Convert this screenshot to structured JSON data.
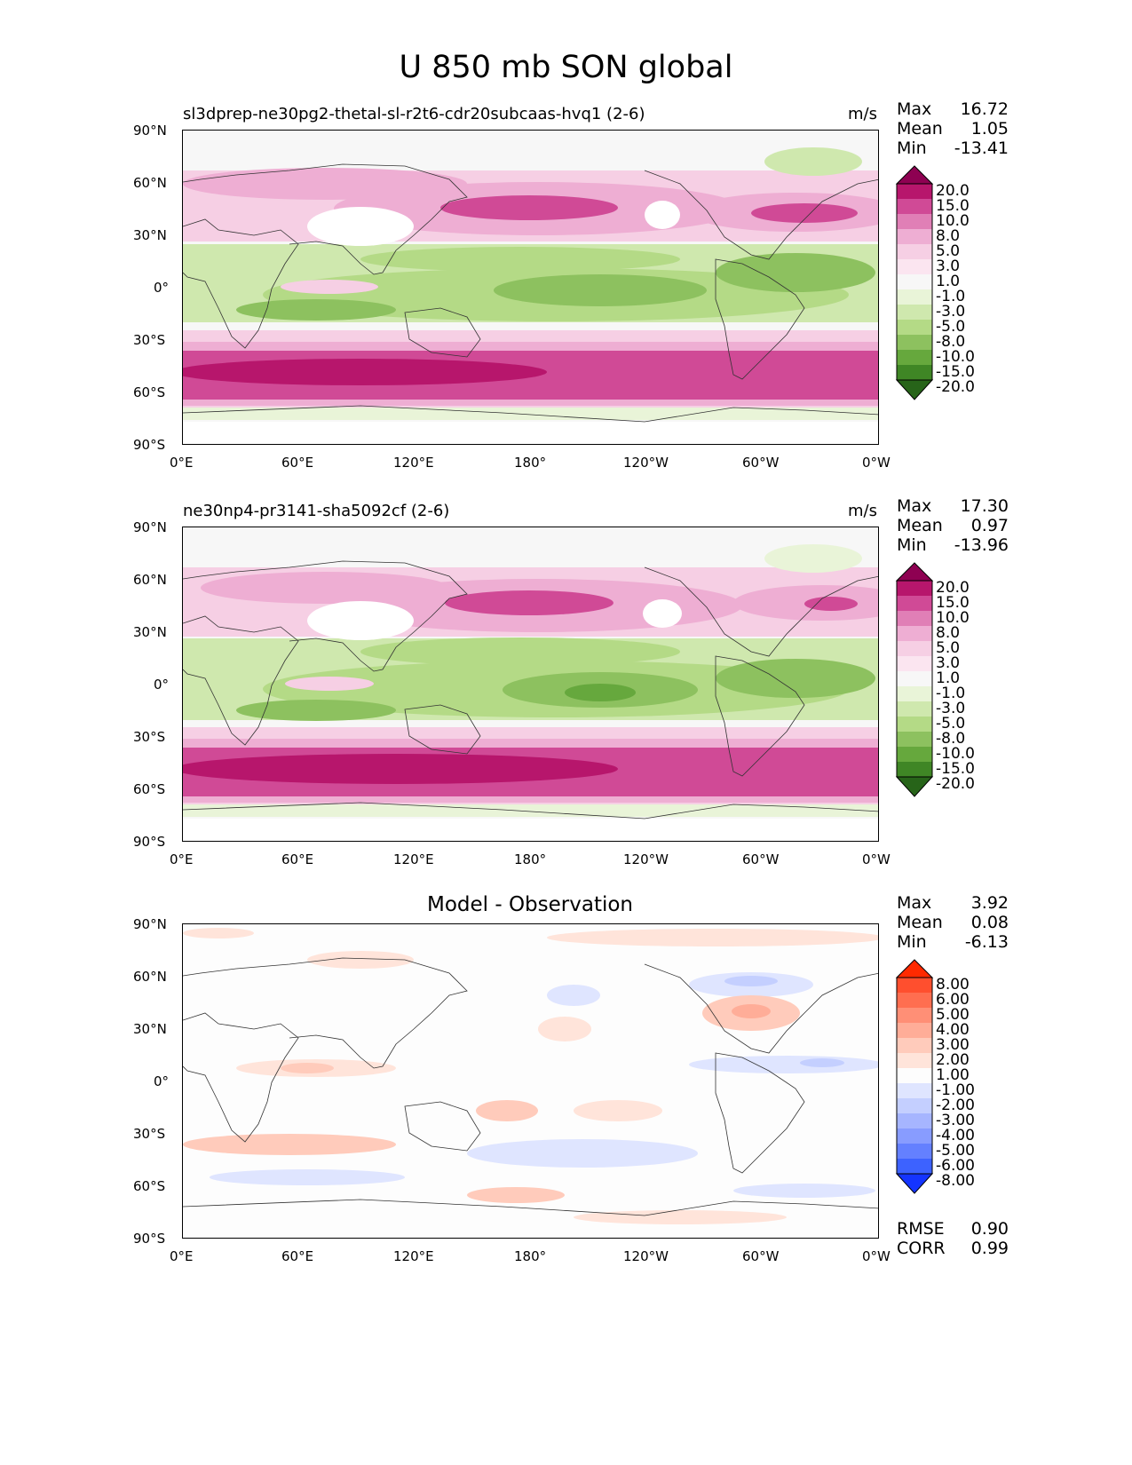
{
  "figure": {
    "title": "U 850 mb SON global"
  },
  "axes": {
    "lat_ticks": [
      "90°N",
      "60°N",
      "30°N",
      "0°",
      "30°S",
      "60°S",
      "90°S"
    ],
    "lon_ticks": [
      "0°E",
      "60°E",
      "120°E",
      "180°",
      "120°W",
      "60°W",
      "0°W"
    ]
  },
  "panels": [
    {
      "title": "sl3dprep-ne30pg2-thetal-sl-r2t6-cdr20subcaas-hvq1 (2-6)",
      "units": "m/s",
      "stats": [
        {
          "label": "Max",
          "value": "16.72"
        },
        {
          "label": "Mean",
          "value": "1.05"
        },
        {
          "label": "Min",
          "value": "-13.41"
        }
      ]
    },
    {
      "title": "ne30np4-pr3141-sha5092cf (2-6)",
      "units": "m/s",
      "stats": [
        {
          "label": "Max",
          "value": "17.30"
        },
        {
          "label": "Mean",
          "value": "0.97"
        },
        {
          "label": "Min",
          "value": "-13.96"
        }
      ]
    },
    {
      "title": "Model - Observation",
      "units": "",
      "stats": [
        {
          "label": "Max",
          "value": "3.92"
        },
        {
          "label": "Mean",
          "value": "0.08"
        },
        {
          "label": "Min",
          "value": "-6.13"
        }
      ],
      "metrics": [
        {
          "label": "RMSE",
          "value": "0.90"
        },
        {
          "label": "CORR",
          "value": "0.99"
        }
      ]
    }
  ],
  "colorbars": {
    "field": {
      "labels": [
        "20.0",
        "15.0",
        "10.0",
        "8.0",
        "5.0",
        "3.0",
        "1.0",
        "-1.0",
        "-3.0",
        "-5.0",
        "-8.0",
        "-10.0",
        "-15.0",
        "-20.0"
      ],
      "colors": [
        "#8e0152",
        "#b7166c",
        "#d04a96",
        "#e07fb6",
        "#eeaed3",
        "#f6cfe4",
        "#fbe5f0",
        "#f7f7f7",
        "#e9f4d8",
        "#cfe8ae",
        "#b4da86",
        "#8dc15f",
        "#66a83d",
        "#3f8625",
        "#276419"
      ]
    },
    "diff": {
      "labels": [
        "8.00",
        "6.00",
        "5.00",
        "4.00",
        "3.00",
        "2.00",
        "1.00",
        "-1.00",
        "-2.00",
        "-3.00",
        "-4.00",
        "-5.00",
        "-6.00",
        "-8.00"
      ],
      "colors": [
        "#ff2a00",
        "#ff4f2e",
        "#ff6e50",
        "#ff8f76",
        "#ffad98",
        "#ffcbbb",
        "#ffe4da",
        "#fdfdfd",
        "#dfe5ff",
        "#c4cfff",
        "#a6b5ff",
        "#889cff",
        "#6480ff",
        "#3d62ff",
        "#1434ff"
      ]
    }
  }
}
